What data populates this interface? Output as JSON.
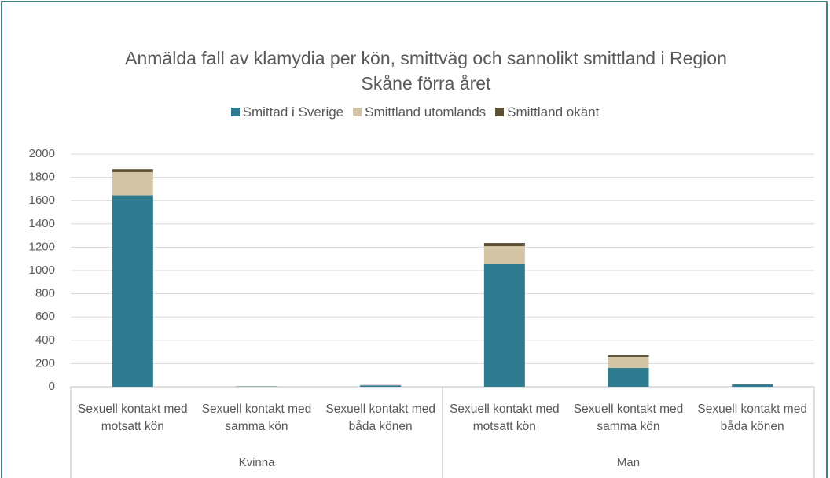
{
  "chart_data": {
    "type": "stacked_bar",
    "title": "Anmälda fall av klamydia per kön, smittväg och sannolikt smittland i Region Skåne förra året",
    "categories": [
      "Sexuell kontakt med motsatt kön",
      "Sexuell kontakt med samma kön",
      "Sexuell kontakt med båda könen",
      "Sexuell kontakt med motsatt kön",
      "Sexuell kontakt med samma kön",
      "Sexuell kontakt med båda könen"
    ],
    "groups": [
      "Kvinna",
      "Man"
    ],
    "series": [
      {
        "name": "Smittad i Sverige",
        "color": "#2e7b8f",
        "values": [
          1645,
          3,
          12,
          1054,
          162,
          20
        ]
      },
      {
        "name": "Smittland utomlands",
        "color": "#d3c4a6",
        "values": [
          200,
          2,
          3,
          155,
          95,
          5
        ]
      },
      {
        "name": "Smittland okänt",
        "color": "#5e5034",
        "values": [
          25,
          0,
          1,
          27,
          13,
          1
        ]
      }
    ],
    "ylim": [
      0,
      2000
    ],
    "yticks": [
      0,
      200,
      400,
      600,
      800,
      1000,
      1200,
      1400,
      1600,
      1800,
      2000
    ],
    "grid": true,
    "legend": "top"
  }
}
